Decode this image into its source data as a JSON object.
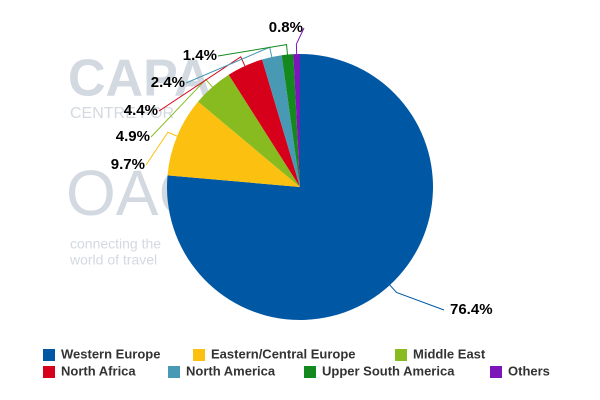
{
  "chart_data": {
    "type": "pie",
    "categories": [
      "Western Europe",
      "Eastern/Central Europe",
      "Middle East",
      "North Africa",
      "North America",
      "Upper South America",
      "Others"
    ],
    "values": [
      76.4,
      9.7,
      4.9,
      4.4,
      2.4,
      1.4,
      0.8
    ],
    "value_labels": [
      "76.4%",
      "9.7%",
      "4.9%",
      "4.4%",
      "2.4%",
      "1.4%",
      "0.8%"
    ],
    "colors": [
      "#0057a3",
      "#fcc010",
      "#88bb1f",
      "#d7001b",
      "#4899b4",
      "#148a1e",
      "#7b16b8"
    ],
    "watermark": [
      "CAPA",
      "CENTRE FOR",
      "OAG",
      "connecting the",
      "world of travel"
    ]
  }
}
